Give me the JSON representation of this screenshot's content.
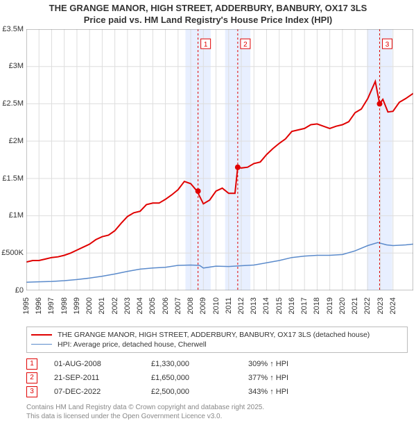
{
  "title_line1": "THE GRANGE MANOR, HIGH STREET, ADDERBURY, BANBURY, OX17 3LS",
  "title_line2": "Price paid vs. HM Land Registry's House Price Index (HPI)",
  "chart": {
    "type": "line",
    "background_color": "#ffffff",
    "grid_color": "#dddddd",
    "panel_fill": "#e8efff",
    "panel_year_width": 2,
    "x_start_year": 1995,
    "x_end_year": 2025.6,
    "x_ticks": [
      1995,
      1996,
      1997,
      1998,
      1999,
      2000,
      2001,
      2002,
      2003,
      2004,
      2005,
      2006,
      2007,
      2008,
      2009,
      2010,
      2011,
      2012,
      2013,
      2014,
      2015,
      2016,
      2017,
      2018,
      2019,
      2020,
      2021,
      2022,
      2023,
      2024
    ],
    "ylim": [
      0,
      3500000
    ],
    "y_ticks": [
      {
        "v": 0,
        "label": "£0"
      },
      {
        "v": 500000,
        "label": "£500K"
      },
      {
        "v": 1000000,
        "label": "£1M"
      },
      {
        "v": 1500000,
        "label": "£1.5M"
      },
      {
        "v": 2000000,
        "label": "£2M"
      },
      {
        "v": 2500000,
        "label": "£2.5M"
      },
      {
        "v": 3000000,
        "label": "£3M"
      },
      {
        "v": 3500000,
        "label": "£3.5M"
      }
    ],
    "series": [
      {
        "name": "THE GRANGE MANOR, HIGH STREET, ADDERBURY, BANBURY, OX17 3LS (detached house)",
        "color": "#e00000",
        "width": 2,
        "points": [
          [
            1995.0,
            380000
          ],
          [
            1995.5,
            400000
          ],
          [
            1996.0,
            400000
          ],
          [
            1996.5,
            420000
          ],
          [
            1997.0,
            440000
          ],
          [
            1997.5,
            450000
          ],
          [
            1998.0,
            470000
          ],
          [
            1998.5,
            500000
          ],
          [
            1999.0,
            540000
          ],
          [
            1999.5,
            580000
          ],
          [
            2000.0,
            620000
          ],
          [
            2000.5,
            680000
          ],
          [
            2001.0,
            720000
          ],
          [
            2001.5,
            740000
          ],
          [
            2002.0,
            800000
          ],
          [
            2002.5,
            900000
          ],
          [
            2003.0,
            990000
          ],
          [
            2003.5,
            1040000
          ],
          [
            2004.0,
            1060000
          ],
          [
            2004.5,
            1150000
          ],
          [
            2005.0,
            1170000
          ],
          [
            2005.5,
            1170000
          ],
          [
            2006.0,
            1220000
          ],
          [
            2006.5,
            1280000
          ],
          [
            2007.0,
            1350000
          ],
          [
            2007.5,
            1460000
          ],
          [
            2008.0,
            1430000
          ],
          [
            2008.5,
            1330000
          ],
          [
            2009.0,
            1160000
          ],
          [
            2009.5,
            1210000
          ],
          [
            2010.0,
            1330000
          ],
          [
            2010.5,
            1370000
          ],
          [
            2011.0,
            1300000
          ],
          [
            2011.5,
            1300000
          ],
          [
            2011.72,
            1650000
          ],
          [
            2012.0,
            1640000
          ],
          [
            2012.5,
            1650000
          ],
          [
            2013.0,
            1700000
          ],
          [
            2013.5,
            1720000
          ],
          [
            2014.0,
            1820000
          ],
          [
            2014.5,
            1900000
          ],
          [
            2015.0,
            1970000
          ],
          [
            2015.5,
            2030000
          ],
          [
            2016.0,
            2130000
          ],
          [
            2016.5,
            2150000
          ],
          [
            2017.0,
            2170000
          ],
          [
            2017.5,
            2220000
          ],
          [
            2018.0,
            2230000
          ],
          [
            2018.5,
            2200000
          ],
          [
            2019.0,
            2170000
          ],
          [
            2019.5,
            2200000
          ],
          [
            2020.0,
            2220000
          ],
          [
            2020.5,
            2260000
          ],
          [
            2021.0,
            2380000
          ],
          [
            2021.5,
            2430000
          ],
          [
            2022.0,
            2570000
          ],
          [
            2022.6,
            2800000
          ],
          [
            2022.94,
            2500000
          ],
          [
            2023.2,
            2560000
          ],
          [
            2023.6,
            2390000
          ],
          [
            2024.0,
            2400000
          ],
          [
            2024.5,
            2520000
          ],
          [
            2025.0,
            2570000
          ],
          [
            2025.6,
            2640000
          ]
        ]
      },
      {
        "name": "HPI: Average price, detached house, Cherwell",
        "color": "#5a8acb",
        "width": 1.5,
        "points": [
          [
            1995.0,
            110000
          ],
          [
            1996.0,
            115000
          ],
          [
            1997.0,
            120000
          ],
          [
            1998.0,
            130000
          ],
          [
            1999.0,
            145000
          ],
          [
            2000.0,
            165000
          ],
          [
            2001.0,
            190000
          ],
          [
            2002.0,
            220000
          ],
          [
            2003.0,
            255000
          ],
          [
            2004.0,
            285000
          ],
          [
            2005.0,
            300000
          ],
          [
            2006.0,
            310000
          ],
          [
            2007.0,
            335000
          ],
          [
            2008.0,
            340000
          ],
          [
            2008.7,
            335000
          ],
          [
            2009.0,
            300000
          ],
          [
            2010.0,
            325000
          ],
          [
            2011.0,
            320000
          ],
          [
            2012.0,
            330000
          ],
          [
            2013.0,
            340000
          ],
          [
            2014.0,
            370000
          ],
          [
            2015.0,
            400000
          ],
          [
            2016.0,
            440000
          ],
          [
            2017.0,
            460000
          ],
          [
            2018.0,
            470000
          ],
          [
            2019.0,
            470000
          ],
          [
            2020.0,
            480000
          ],
          [
            2021.0,
            530000
          ],
          [
            2022.0,
            600000
          ],
          [
            2022.8,
            640000
          ],
          [
            2023.5,
            610000
          ],
          [
            2024.0,
            600000
          ],
          [
            2025.0,
            610000
          ],
          [
            2025.6,
            620000
          ]
        ]
      }
    ],
    "sale_markers": [
      {
        "n": "1",
        "year": 2008.58,
        "value": 1330000
      },
      {
        "n": "2",
        "year": 2011.72,
        "value": 1650000
      },
      {
        "n": "3",
        "year": 2022.94,
        "value": 2500000
      }
    ],
    "marker_line_color": "#e00000",
    "marker_dot_color": "#e00000",
    "marker_box_border": "#e00000"
  },
  "legend": [
    {
      "color": "#e00000",
      "width": 2,
      "label": "THE GRANGE MANOR, HIGH STREET, ADDERBURY, BANBURY, OX17 3LS (detached house)"
    },
    {
      "color": "#5a8acb",
      "width": 1.5,
      "label": "HPI: Average price, detached house, Cherwell"
    }
  ],
  "sales": [
    {
      "n": "1",
      "date": "01-AUG-2008",
      "price": "£1,330,000",
      "pct": "309% ↑ HPI"
    },
    {
      "n": "2",
      "date": "21-SEP-2011",
      "price": "£1,650,000",
      "pct": "377% ↑ HPI"
    },
    {
      "n": "3",
      "date": "07-DEC-2022",
      "price": "£2,500,000",
      "pct": "343% ↑ HPI"
    }
  ],
  "footnote_line1": "Contains HM Land Registry data © Crown copyright and database right 2025.",
  "footnote_line2": "This data is licensed under the Open Government Licence v3.0."
}
